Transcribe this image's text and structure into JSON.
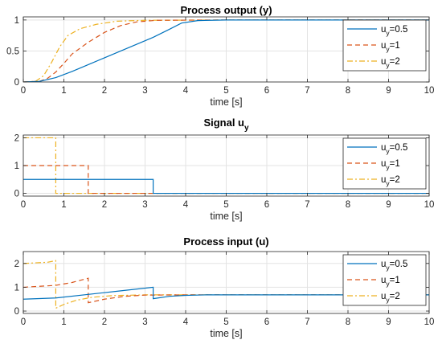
{
  "series_styles": [
    {
      "color": "#0072BD",
      "dash": ""
    },
    {
      "color": "#D95319",
      "dash": "6,4"
    },
    {
      "color": "#EDB120",
      "dash": "7,3,2,3"
    }
  ],
  "legend_base": [
    "u",
    "u",
    "u"
  ],
  "legend_sub": [
    "y",
    "y",
    "y"
  ],
  "legend_value": [
    "=0.5",
    "=1",
    "=2"
  ],
  "chart_data": [
    {
      "type": "line",
      "title": "Process output (y)",
      "title_main": "Process output (y)",
      "title_sub": "",
      "xlabel": "time [s]",
      "ylabel": "",
      "xlim": [
        0,
        10
      ],
      "ylim": [
        0,
        1.05
      ],
      "xticks": [
        "0",
        "1",
        "2",
        "3",
        "4",
        "5",
        "6",
        "7",
        "8",
        "9",
        "10"
      ],
      "yticks": [
        "0",
        "0.5",
        "1"
      ],
      "grid": true,
      "legend_position": "top-right",
      "series": [
        {
          "label": "uy=0.5",
          "x": [
            0,
            0.4,
            0.8,
            1.2,
            1.6,
            2.0,
            2.4,
            2.8,
            3.2,
            3.6,
            3.9,
            4.3,
            5,
            10
          ],
          "y": [
            0,
            0.01,
            0.07,
            0.17,
            0.28,
            0.39,
            0.5,
            0.61,
            0.72,
            0.85,
            0.95,
            0.99,
            1,
            1
          ]
        },
        {
          "label": "uy=1",
          "x": [
            0,
            0.4,
            0.6,
            0.8,
            1.0,
            1.2,
            1.6,
            2.0,
            2.4,
            2.8,
            3.3,
            5,
            10
          ],
          "y": [
            0,
            0.01,
            0.06,
            0.16,
            0.3,
            0.45,
            0.64,
            0.8,
            0.91,
            0.97,
            0.995,
            1,
            1
          ]
        },
        {
          "label": "uy=2",
          "x": [
            0,
            0.3,
            0.5,
            0.7,
            0.9,
            1.1,
            1.4,
            1.8,
            2.3,
            3.0,
            5,
            10
          ],
          "y": [
            0,
            0.01,
            0.1,
            0.32,
            0.57,
            0.75,
            0.86,
            0.93,
            0.98,
            0.995,
            1,
            1
          ]
        }
      ]
    },
    {
      "type": "line",
      "title": "Signal uy",
      "title_main": "Signal u",
      "title_sub": "y",
      "xlabel": "time [s]",
      "ylabel": "",
      "xlim": [
        0,
        10
      ],
      "ylim": [
        -0.1,
        2.1
      ],
      "xticks": [
        "0",
        "1",
        "2",
        "3",
        "4",
        "5",
        "6",
        "7",
        "8",
        "9",
        "10"
      ],
      "yticks": [
        "0",
        "1",
        "2"
      ],
      "grid": true,
      "legend_position": "top-right",
      "series": [
        {
          "label": "uy=0.5",
          "x": [
            0,
            3.2,
            3.2,
            10
          ],
          "y": [
            0.5,
            0.5,
            0,
            0
          ]
        },
        {
          "label": "uy=1",
          "x": [
            0,
            1.6,
            1.6,
            10
          ],
          "y": [
            1,
            1,
            0,
            0
          ]
        },
        {
          "label": "uy=2",
          "x": [
            0,
            0.8,
            0.8,
            10
          ],
          "y": [
            2,
            2,
            0,
            0
          ]
        }
      ]
    },
    {
      "type": "line",
      "title": "Process input (u)",
      "title_main": "Process input (u)",
      "title_sub": "",
      "xlabel": "time [s]",
      "ylabel": "",
      "xlim": [
        0,
        10
      ],
      "ylim": [
        -0.1,
        2.5
      ],
      "xticks": [
        "0",
        "1",
        "2",
        "3",
        "4",
        "5",
        "6",
        "7",
        "8",
        "9",
        "10"
      ],
      "yticks": [
        "0",
        "1",
        "2"
      ],
      "grid": true,
      "legend_position": "top-right",
      "series": [
        {
          "label": "uy=0.5",
          "x": [
            0,
            0.8,
            1.6,
            2.4,
            3.2,
            3.2,
            3.6,
            4.0,
            4.5,
            5,
            10
          ],
          "y": [
            0.5,
            0.55,
            0.7,
            0.85,
            1.0,
            0.52,
            0.62,
            0.66,
            0.68,
            0.68,
            0.68
          ]
        },
        {
          "label": "uy=1",
          "x": [
            0,
            0.8,
            1.2,
            1.6,
            1.6,
            2.0,
            2.5,
            3.0,
            4,
            10
          ],
          "y": [
            1,
            1.08,
            1.2,
            1.38,
            0.35,
            0.5,
            0.62,
            0.67,
            0.68,
            0.68
          ]
        },
        {
          "label": "uy=2",
          "x": [
            0,
            0.6,
            0.8,
            0.8,
            1.0,
            1.3,
            1.7,
            2.2,
            3,
            10
          ],
          "y": [
            2,
            2.05,
            2.12,
            0.12,
            0.28,
            0.45,
            0.58,
            0.65,
            0.68,
            0.68
          ]
        }
      ]
    }
  ]
}
